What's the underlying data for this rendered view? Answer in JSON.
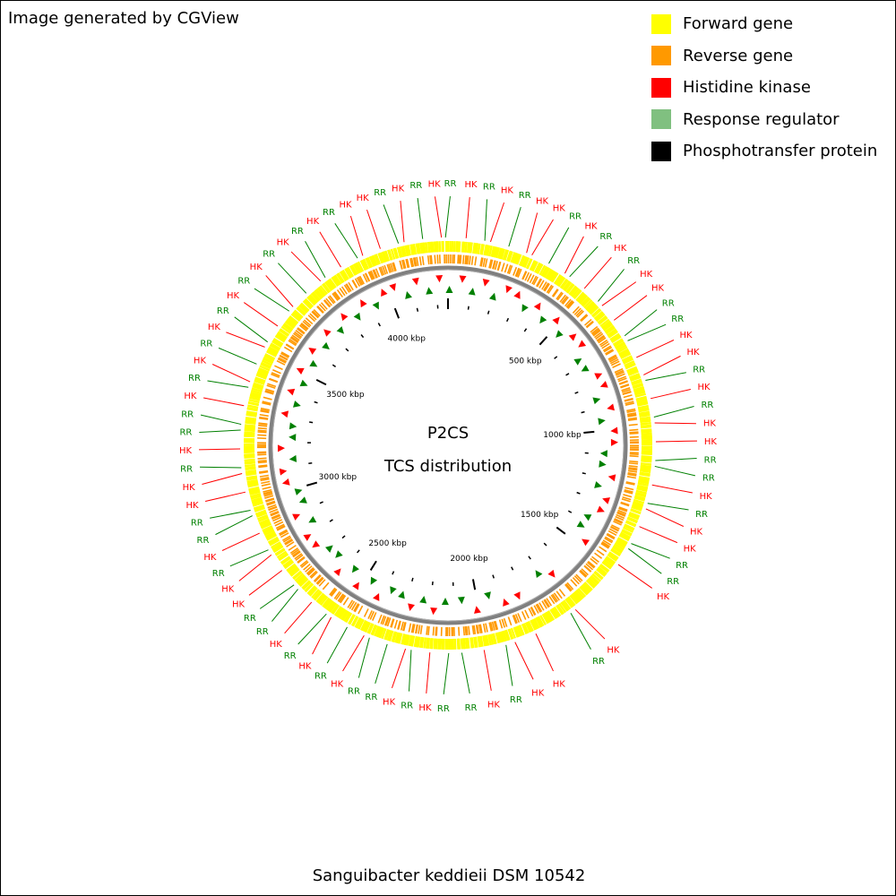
{
  "credit": "Image generated by CGView",
  "legend": [
    {
      "label": "Forward gene",
      "color": "#ffff00"
    },
    {
      "label": "Reverse gene",
      "color": "#ff9900"
    },
    {
      "label": "Histidine kinase",
      "color": "#ff0000"
    },
    {
      "label": "Response regulator",
      "color": "#80c080"
    },
    {
      "label": "Phosphotransfer protein",
      "color": "#000000"
    }
  ],
  "center": {
    "title": "P2CS",
    "subtitle": "TCS distribution"
  },
  "organism": "Sanguibacter keddieii DSM 10542",
  "colors": {
    "forward": "#ffff00",
    "reverse": "#ff9900",
    "hk": "#ff0000",
    "rr": "#008000",
    "backbone": "#808080"
  },
  "genome": {
    "tick_labels": [
      {
        "label": "500 kbp",
        "kbp": 500
      },
      {
        "label": "1000 kbp",
        "kbp": 1000
      },
      {
        "label": "1500 kbp",
        "kbp": 1500
      },
      {
        "label": "2000 kbp",
        "kbp": 2000
      },
      {
        "label": "2500 kbp",
        "kbp": 2500
      },
      {
        "label": "3000 kbp",
        "kbp": 3000
      },
      {
        "label": "3500 kbp",
        "kbp": 3500
      },
      {
        "label": "4000 kbp",
        "kbp": 4000
      }
    ]
  },
  "features": [
    {
      "label": "RR",
      "angle": 0.5
    },
    {
      "label": "HK",
      "angle": 5
    },
    {
      "label": "RR",
      "angle": 9
    },
    {
      "label": "HK",
      "angle": 13
    },
    {
      "label": "RR",
      "angle": 17
    },
    {
      "label": "HK",
      "angle": 21
    },
    {
      "label": "HK",
      "angle": 25
    },
    {
      "label": "RR",
      "angle": 29
    },
    {
      "label": "HK",
      "angle": 33
    },
    {
      "label": "RR",
      "angle": 37
    },
    {
      "label": "HK",
      "angle": 41
    },
    {
      "label": "RR",
      "angle": 45
    },
    {
      "label": "HK",
      "angle": 49
    },
    {
      "label": "HK",
      "angle": 53
    },
    {
      "label": "RR",
      "angle": 57
    },
    {
      "label": "RR",
      "angle": 61
    },
    {
      "label": "HK",
      "angle": 65
    },
    {
      "label": "HK",
      "angle": 69
    },
    {
      "label": "RR",
      "angle": 73
    },
    {
      "label": "HK",
      "angle": 77
    },
    {
      "label": "RR",
      "angle": 81
    },
    {
      "label": "HK",
      "angle": 85
    },
    {
      "label": "HK",
      "angle": 89
    },
    {
      "label": "RR",
      "angle": 93
    },
    {
      "label": "RR",
      "angle": 97
    },
    {
      "label": "HK",
      "angle": 101
    },
    {
      "label": "RR",
      "angle": 105
    },
    {
      "label": "HK",
      "angle": 109
    },
    {
      "label": "HK",
      "angle": 113
    },
    {
      "label": "RR",
      "angle": 117
    },
    {
      "label": "RR",
      "angle": 121
    },
    {
      "label": "HK",
      "angle": 125
    },
    {
      "label": "HK",
      "angle": 141
    },
    {
      "label": "RR",
      "angle": 145
    },
    {
      "label": "HK",
      "angle": 155
    },
    {
      "label": "HK",
      "angle": 160
    },
    {
      "label": "RR",
      "angle": 165
    },
    {
      "label": "HK",
      "angle": 170
    },
    {
      "label": "RR",
      "angle": 175
    },
    {
      "label": "RR",
      "angle": 181
    },
    {
      "label": "HK",
      "angle": 185
    },
    {
      "label": "RR",
      "angle": 189
    },
    {
      "label": "HK",
      "angle": 193
    },
    {
      "label": "RR",
      "angle": 197
    },
    {
      "label": "RR",
      "angle": 201
    },
    {
      "label": "HK",
      "angle": 205
    },
    {
      "label": "RR",
      "angle": 209
    },
    {
      "label": "HK",
      "angle": 213
    },
    {
      "label": "RR",
      "angle": 217
    },
    {
      "label": "HK",
      "angle": 221
    },
    {
      "label": "RR",
      "angle": 225
    },
    {
      "label": "RR",
      "angle": 229
    },
    {
      "label": "HK",
      "angle": 233
    },
    {
      "label": "HK",
      "angle": 237
    },
    {
      "label": "RR",
      "angle": 241
    },
    {
      "label": "HK",
      "angle": 245
    },
    {
      "label": "RR",
      "angle": 249
    },
    {
      "label": "RR",
      "angle": 253
    },
    {
      "label": "HK",
      "angle": 257
    },
    {
      "label": "HK",
      "angle": 261
    },
    {
      "label": "RR",
      "angle": 265
    },
    {
      "label": "HK",
      "angle": 269
    },
    {
      "label": "RR",
      "angle": 273
    },
    {
      "label": "RR",
      "angle": 277
    },
    {
      "label": "HK",
      "angle": 281
    },
    {
      "label": "RR",
      "angle": 285
    },
    {
      "label": "HK",
      "angle": 289
    },
    {
      "label": "RR",
      "angle": 293
    },
    {
      "label": "HK",
      "angle": 297
    },
    {
      "label": "RR",
      "angle": 301
    },
    {
      "label": "HK",
      "angle": 305
    },
    {
      "label": "RR",
      "angle": 309
    },
    {
      "label": "HK",
      "angle": 313
    },
    {
      "label": "RR",
      "angle": 317
    },
    {
      "label": "HK",
      "angle": 321
    },
    {
      "label": "RR",
      "angle": 325
    },
    {
      "label": "HK",
      "angle": 329
    },
    {
      "label": "RR",
      "angle": 333
    },
    {
      "label": "HK",
      "angle": 337
    },
    {
      "label": "HK",
      "angle": 341
    },
    {
      "label": "RR",
      "angle": 345
    },
    {
      "label": "HK",
      "angle": 349
    },
    {
      "label": "RR",
      "angle": 353
    },
    {
      "label": "HK",
      "angle": 357
    }
  ]
}
